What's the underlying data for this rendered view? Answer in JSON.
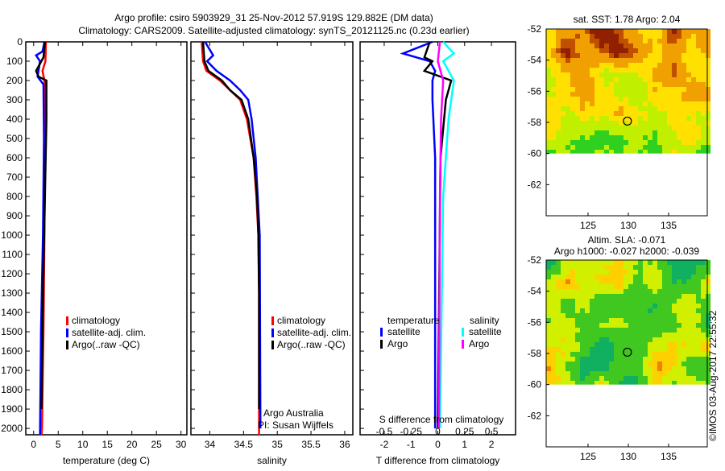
{
  "title": {
    "line1": "Argo profile: csiro 5903929_31 25-Nov-2012 57.919S 129.882E (DM data)",
    "line2": "Climatology: CARS2009. Satellite-adjusted climatology: synTS_20121125.nc (0.23d earlier)"
  },
  "colors": {
    "climatology": "#ff0000",
    "satellite": "#0000ff",
    "argo": "#000000",
    "sal_satellite": "#00ffff",
    "sal_argo": "#ff00ff"
  },
  "chart_data": [
    {
      "type": "line",
      "name": "temperature",
      "xlabel": "temperature (deg C)",
      "xlim": [
        -1.6,
        31.2
      ],
      "ylim": [
        0,
        2033
      ],
      "xticks": [
        "0",
        "5",
        "10",
        "15",
        "20",
        "25",
        "30"
      ],
      "yticks": [
        "0",
        "100",
        "200",
        "300",
        "400",
        "500",
        "600",
        "700",
        "800",
        "900",
        "1000",
        "1100",
        "1200",
        "1300",
        "1400",
        "1500",
        "1600",
        "1700",
        "1800",
        "1900",
        "2000"
      ],
      "legend": [
        "climatology",
        "satellite-adj. clim.",
        "Argo(..raw -QC)"
      ],
      "series": [
        {
          "name": "climatology",
          "depth": [
            0,
            100,
            150,
            200,
            300,
            500,
            1000,
            1500,
            2000,
            2033
          ],
          "values": [
            2.5,
            2.4,
            1.8,
            2.2,
            2.4,
            2.3,
            2.2,
            2.0,
            1.7,
            1.6
          ]
        },
        {
          "name": "satellite-adj. clim.",
          "depth": [
            0,
            50,
            70,
            100,
            180,
            220,
            500,
            1000,
            1500,
            2033
          ],
          "values": [
            2.2,
            1.8,
            0.5,
            1.3,
            0.8,
            2.0,
            2.1,
            1.9,
            1.5,
            1.3
          ]
        },
        {
          "name": "Argo(..raw -QC)",
          "depth": [
            0,
            80,
            150,
            180,
            200,
            400,
            800,
            1300,
            1900
          ],
          "values": [
            2.3,
            2.0,
            0.5,
            1.0,
            2.6,
            2.6,
            2.3,
            1.9,
            1.6
          ]
        }
      ]
    },
    {
      "type": "line",
      "name": "salinity",
      "xlabel": "salinity",
      "xlim": [
        33.72,
        36.12
      ],
      "ylim": [
        0,
        2033
      ],
      "xticks": [
        "34",
        "34.5",
        "35",
        "35.5",
        "36"
      ],
      "legend": [
        "climatology",
        "satellite-adj. clim.",
        "Argo(..raw -QC)"
      ],
      "annotation": [
        "Argo Australia",
        "PI: Susan Wijffels"
      ],
      "series": [
        {
          "name": "climatology",
          "depth": [
            0,
            100,
            150,
            200,
            250,
            300,
            400,
            600,
            800,
            1000,
            1300,
            2033
          ],
          "values": [
            33.88,
            33.9,
            33.95,
            34.15,
            34.3,
            34.45,
            34.55,
            34.65,
            34.69,
            34.72,
            34.73,
            34.73
          ]
        },
        {
          "name": "satellite-adj. clim.",
          "depth": [
            0,
            70,
            100,
            150,
            200,
            250,
            300,
            400,
            600,
            800,
            1000,
            2000
          ],
          "values": [
            33.93,
            34.05,
            33.96,
            34.1,
            34.3,
            34.45,
            34.57,
            34.62,
            34.68,
            34.71,
            34.74,
            34.75
          ]
        },
        {
          "name": "Argo(..raw -QC)",
          "depth": [
            0,
            100,
            150,
            200,
            250,
            300,
            400,
            600,
            800,
            1000,
            1300,
            1900
          ],
          "values": [
            33.9,
            33.92,
            33.98,
            34.18,
            34.3,
            34.47,
            34.57,
            34.65,
            34.7,
            34.72,
            34.73,
            34.73
          ]
        }
      ]
    },
    {
      "type": "line",
      "name": "difference",
      "xlabel": "T difference from climatology",
      "x2label": "S difference from climatology",
      "xlim": [
        -2.9,
        2.9
      ],
      "ylim": [
        0,
        2033
      ],
      "xticks": [
        "-2",
        "-1",
        "0",
        "1",
        "2"
      ],
      "x2ticks": [
        "-0.5",
        "-0.25",
        "0",
        "0.25",
        "0.5"
      ],
      "legend": {
        "temperature": "temperature",
        "salinity": "salinity",
        "items": [
          "satellite",
          "Argo",
          "satellite",
          "Argo"
        ]
      },
      "series": [
        {
          "name": "T satellite",
          "depth": [
            0,
            60,
            100,
            150,
            200,
            300,
            600,
            2000
          ],
          "values": [
            -0.2,
            -1.3,
            -0.3,
            -0.1,
            -0.2,
            -0.2,
            -0.1,
            -0.1
          ]
        },
        {
          "name": "T Argo",
          "depth": [
            0,
            80,
            100,
            150,
            200,
            300,
            600,
            2000
          ],
          "values": [
            -0.3,
            -0.5,
            -0.2,
            -0.5,
            0.5,
            0.3,
            0.1,
            0.0
          ]
        },
        {
          "name": "S satellite",
          "depth": [
            0,
            60,
            100,
            200,
            400,
            800,
            2000
          ],
          "values": [
            0.05,
            0.15,
            0.05,
            0.15,
            0.1,
            0.05,
            0.02
          ]
        },
        {
          "name": "S Argo",
          "depth": [
            0,
            100,
            200,
            400,
            800,
            2000
          ],
          "values": [
            0.02,
            0.0,
            0.05,
            0.03,
            0.02,
            0.01
          ]
        }
      ]
    },
    {
      "type": "heatmap",
      "name": "sst-map",
      "title": "sat. SST: 1.78 Argo: 2.04",
      "xlim": [
        119.8,
        139.8
      ],
      "ylim": [
        -64,
        -52
      ],
      "xticks": [
        "125",
        "130",
        "135"
      ],
      "yticks": [
        "-52",
        "-54",
        "-56",
        "-58",
        "-60",
        "-62"
      ],
      "marker": {
        "lon": 129.882,
        "lat": -57.919
      }
    },
    {
      "type": "heatmap",
      "name": "sla-map",
      "title": "Altim. SLA: -0.071",
      "subtitle": "Argo h1000: -0.027 h2000: -0.039",
      "xlim": [
        119.8,
        139.8
      ],
      "ylim": [
        -64,
        -52
      ],
      "xticks": [
        "125",
        "130",
        "135"
      ],
      "yticks": [
        "-52",
        "-54",
        "-56",
        "-58",
        "-60",
        "-62"
      ],
      "marker": {
        "lon": 129.882,
        "lat": -57.919
      }
    }
  ],
  "footer": "©IMOS 03-Aug-2017 22:55:32"
}
